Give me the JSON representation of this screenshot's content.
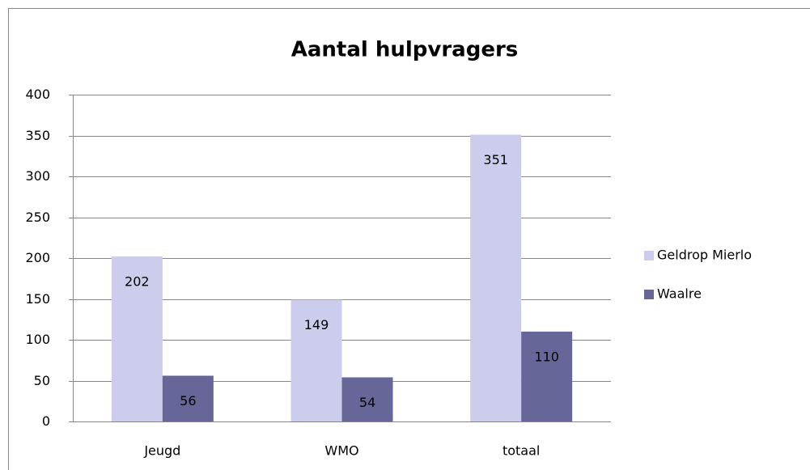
{
  "chart_data": {
    "type": "bar",
    "title": "Aantal hulpvragers",
    "categories": [
      "Jeugd",
      "WMO",
      "totaal"
    ],
    "series": [
      {
        "name": "Geldrop Mierlo",
        "color": "#ccccec",
        "values": [
          202,
          149,
          351
        ]
      },
      {
        "name": "Waalre",
        "color": "#666699",
        "values": [
          56,
          54,
          110
        ]
      }
    ],
    "ylim": [
      0,
      400
    ],
    "yticks": [
      0,
      50,
      100,
      150,
      200,
      250,
      300,
      350,
      400
    ],
    "grid": true,
    "legend": "right",
    "data_labels": true
  }
}
